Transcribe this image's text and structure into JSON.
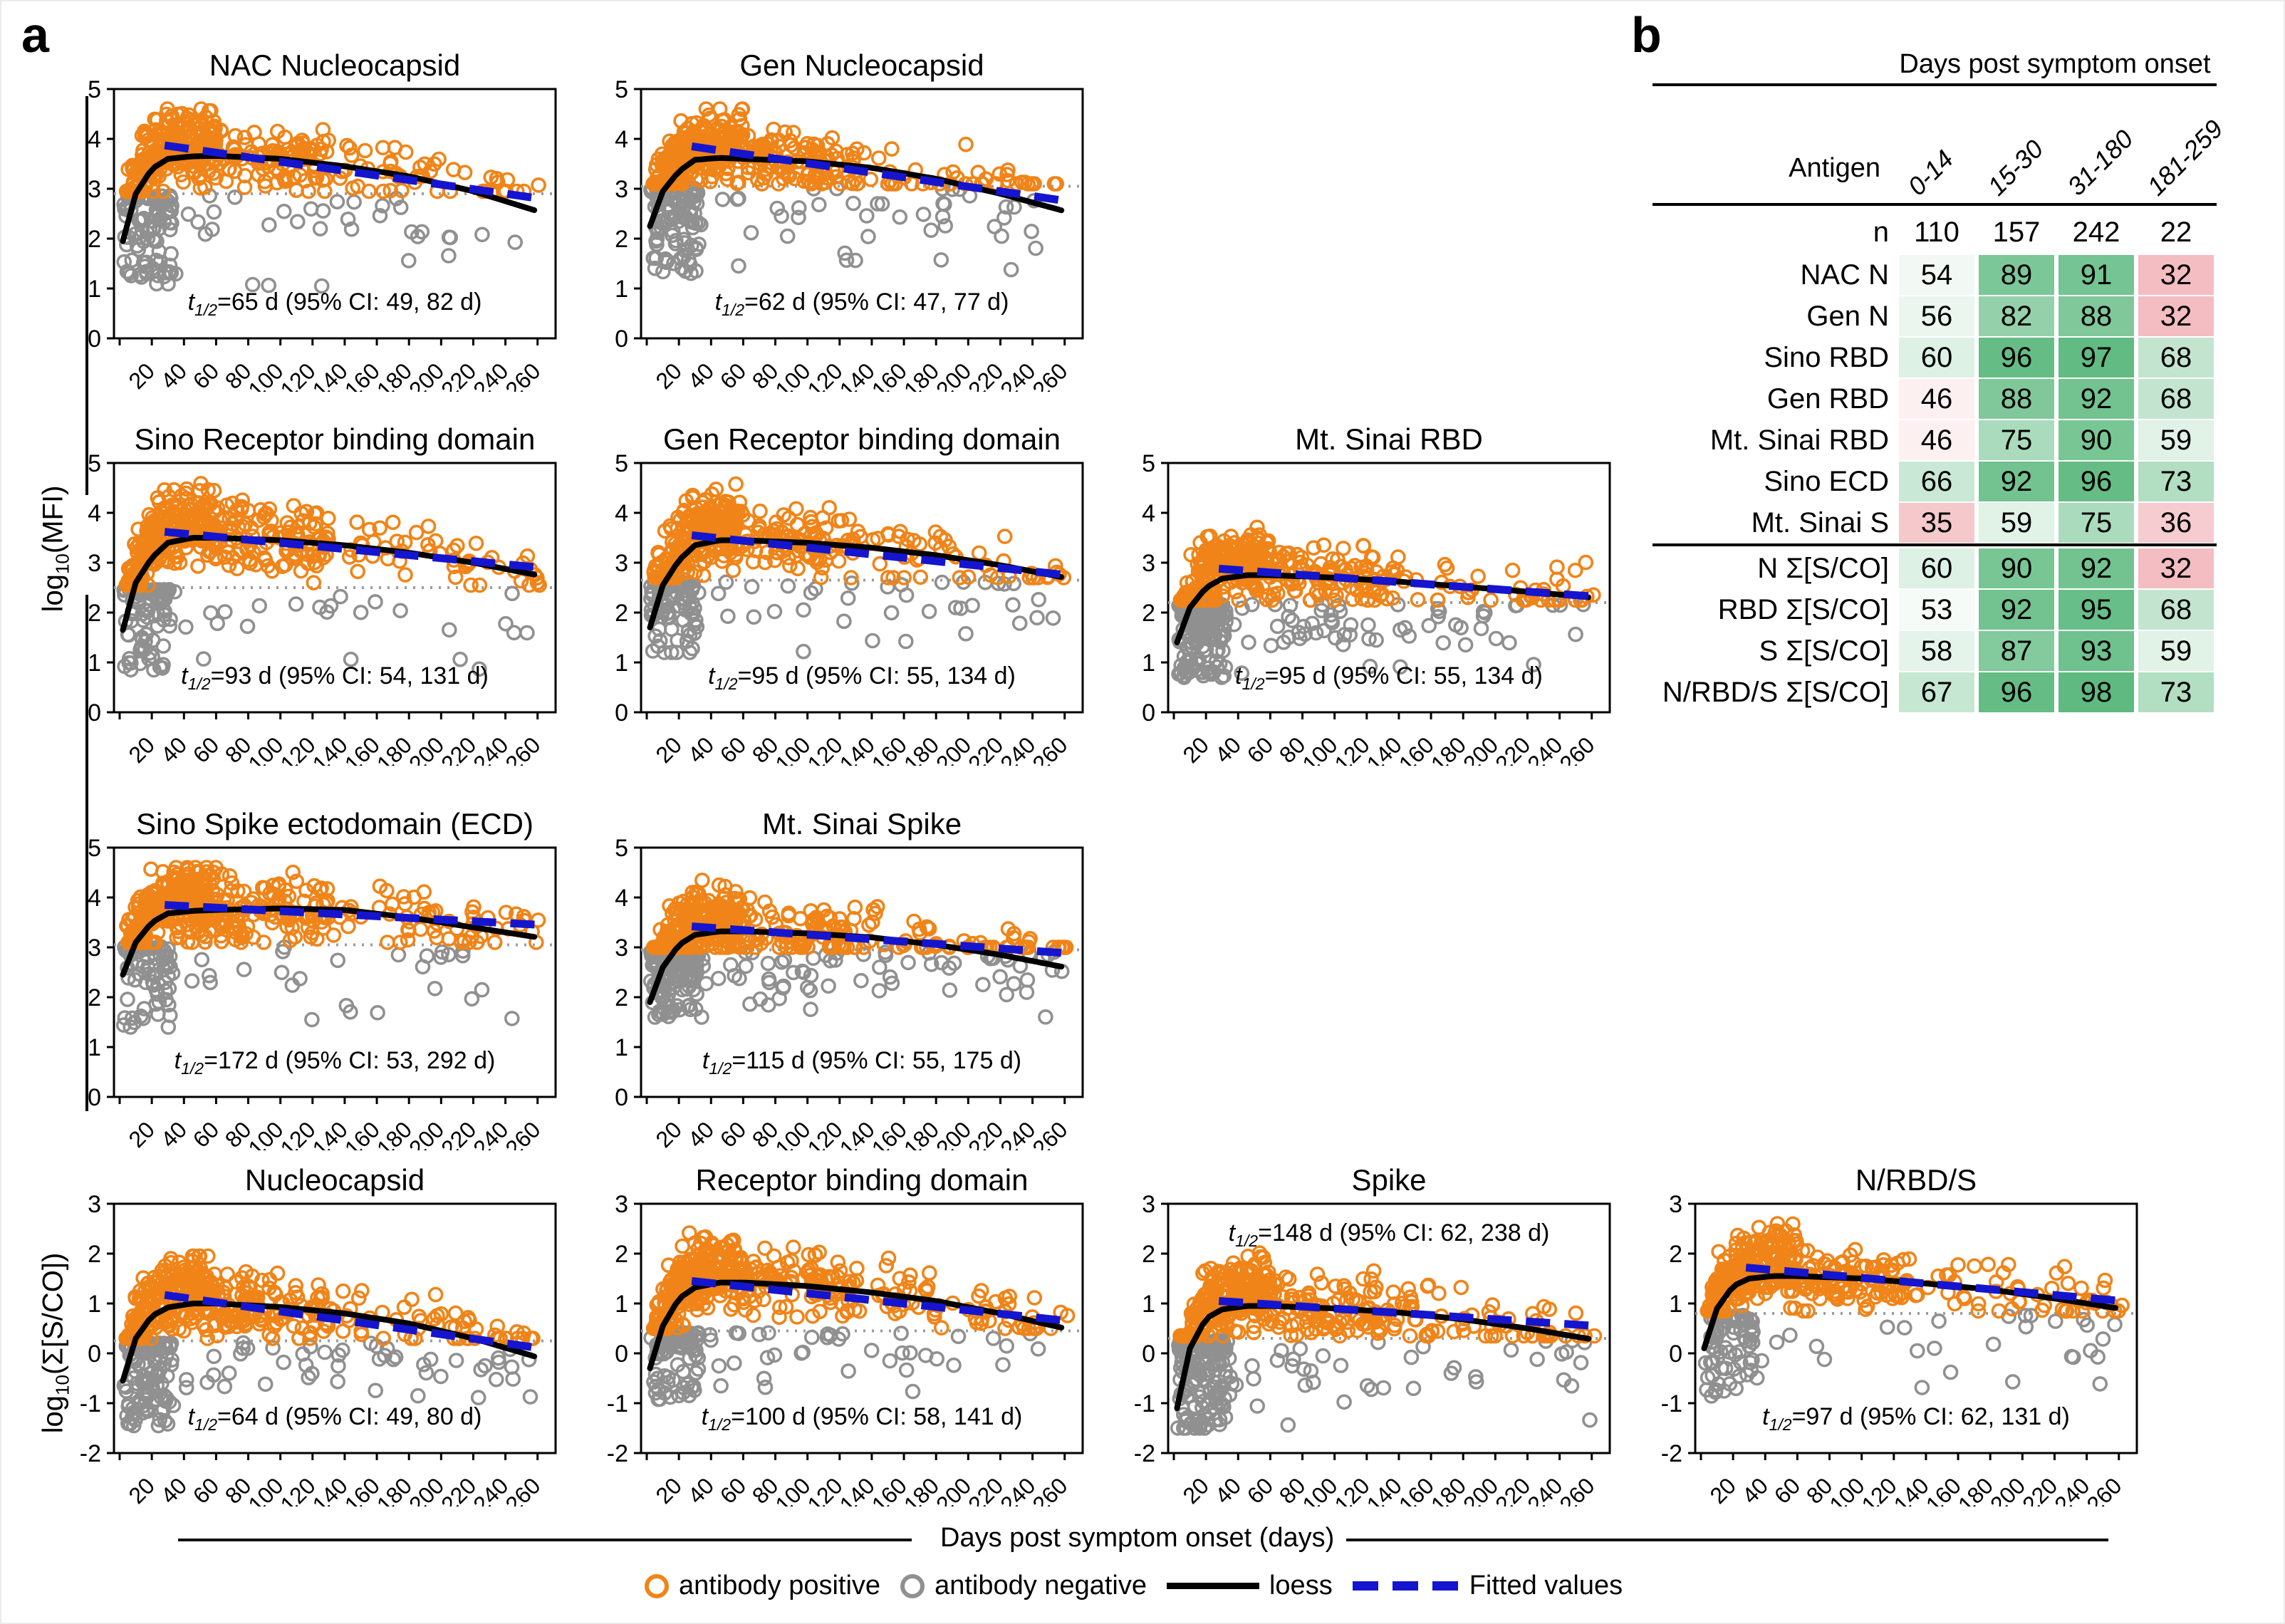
{
  "panel_a": {
    "label": "a",
    "y_axis_mfi": {
      "pre": "log",
      "sub": "10",
      "post": "(MFI)"
    },
    "y_axis_sco": {
      "pre": "log",
      "sub": "10",
      "post": "(Σ[S/CO])"
    },
    "x_axis_label": "Days post symptom onset (days)",
    "annotation_t": "t",
    "annotation_t_sub": "1/2",
    "x_ticks": [
      20,
      40,
      60,
      80,
      100,
      120,
      140,
      160,
      180,
      200,
      220,
      240,
      260
    ],
    "x_max": 265,
    "colors": {
      "positive": "#F08418",
      "negative": "#909090",
      "loess": "#000000",
      "fitted": "#1515D0",
      "threshold": "#9C9C9C"
    },
    "legend": {
      "items": [
        {
          "icon": "orange-circle",
          "label": "antibody positive"
        },
        {
          "icon": "gray-circle",
          "label": "antibody negative"
        },
        {
          "icon": "black-line",
          "label": "loess"
        },
        {
          "icon": "blue-dashed-line",
          "label": "Fitted values"
        }
      ]
    }
  },
  "chart_data": [
    {
      "id": "nac-nucleocapsid",
      "type": "scatter",
      "title": "NAC Nucleocapsid",
      "row": 0,
      "col": 0,
      "ylim": [
        0,
        5
      ],
      "yticks": [
        0,
        1,
        2,
        3,
        4,
        5
      ],
      "threshold": 2.9,
      "annotation": "=65 d (95% CI: 49, 82 d)",
      "annotation_pos": "bottom",
      "loess": [
        [
          2,
          1.95
        ],
        [
          10,
          2.9
        ],
        [
          20,
          3.4
        ],
        [
          30,
          3.6
        ],
        [
          45,
          3.65
        ],
        [
          60,
          3.66
        ],
        [
          100,
          3.6
        ],
        [
          140,
          3.45
        ],
        [
          180,
          3.25
        ],
        [
          220,
          2.95
        ],
        [
          260,
          2.55
        ]
      ],
      "fit": [
        [
          30,
          3.87
        ],
        [
          260,
          2.8
        ]
      ],
      "n_pos": 400,
      "n_neg": 130,
      "pos_max": 4.6,
      "neg_min": 1.05
    },
    {
      "id": "gen-nucleocapsid",
      "type": "scatter",
      "title": "Gen Nucleocapsid",
      "row": 0,
      "col": 1,
      "ylim": [
        0,
        5
      ],
      "yticks": [
        0,
        1,
        2,
        3,
        4,
        5
      ],
      "threshold": 3.05,
      "annotation": "=62 d (95% CI: 47, 77 d)",
      "annotation_pos": "bottom",
      "loess": [
        [
          2,
          2.25
        ],
        [
          10,
          2.95
        ],
        [
          20,
          3.35
        ],
        [
          30,
          3.58
        ],
        [
          45,
          3.62
        ],
        [
          60,
          3.6
        ],
        [
          100,
          3.55
        ],
        [
          140,
          3.42
        ],
        [
          180,
          3.2
        ],
        [
          220,
          2.9
        ],
        [
          260,
          2.55
        ]
      ],
      "fit": [
        [
          30,
          3.85
        ],
        [
          260,
          2.75
        ]
      ],
      "n_pos": 400,
      "n_neg": 150,
      "pos_max": 4.6,
      "neg_min": 1.3
    },
    {
      "id": "sino-rbd",
      "type": "scatter",
      "title": "Sino Receptor binding domain",
      "row": 1,
      "col": 0,
      "ylim": [
        0,
        5
      ],
      "yticks": [
        0,
        1,
        2,
        3,
        4,
        5
      ],
      "threshold": 2.5,
      "annotation": "=93 d (95% CI: 54, 131 d)",
      "annotation_pos": "bottom",
      "loess": [
        [
          2,
          1.65
        ],
        [
          10,
          2.6
        ],
        [
          20,
          3.1
        ],
        [
          30,
          3.4
        ],
        [
          45,
          3.5
        ],
        [
          60,
          3.5
        ],
        [
          100,
          3.45
        ],
        [
          140,
          3.35
        ],
        [
          180,
          3.2
        ],
        [
          220,
          3.0
        ],
        [
          260,
          2.75
        ]
      ],
      "fit": [
        [
          30,
          3.62
        ],
        [
          260,
          2.9
        ]
      ],
      "n_pos": 420,
      "n_neg": 110,
      "pos_max": 4.6,
      "neg_min": 0.85
    },
    {
      "id": "gen-rbd",
      "type": "scatter",
      "title": "Gen Receptor binding domain",
      "row": 1,
      "col": 1,
      "ylim": [
        0,
        5
      ],
      "yticks": [
        0,
        1,
        2,
        3,
        4,
        5
      ],
      "threshold": 2.65,
      "annotation": "=95 d (95% CI: 55, 134 d)",
      "annotation_pos": "bottom",
      "loess": [
        [
          2,
          1.7
        ],
        [
          10,
          2.55
        ],
        [
          20,
          3.05
        ],
        [
          30,
          3.35
        ],
        [
          45,
          3.45
        ],
        [
          60,
          3.45
        ],
        [
          100,
          3.4
        ],
        [
          140,
          3.3
        ],
        [
          180,
          3.15
        ],
        [
          220,
          2.95
        ],
        [
          260,
          2.7
        ]
      ],
      "fit": [
        [
          30,
          3.55
        ],
        [
          260,
          2.75
        ]
      ],
      "n_pos": 410,
      "n_neg": 120,
      "pos_max": 4.6,
      "neg_min": 1.2
    },
    {
      "id": "mtsinai-rbd",
      "type": "scatter",
      "title": "Mt. Sinai RBD",
      "row": 1,
      "col": 2,
      "ylim": [
        0,
        5
      ],
      "yticks": [
        0,
        1,
        2,
        3,
        4,
        5
      ],
      "threshold": 2.2,
      "annotation": "=95 d (95% CI: 55, 134 d)",
      "annotation_pos": "bottom",
      "loess": [
        [
          2,
          1.4
        ],
        [
          10,
          2.1
        ],
        [
          20,
          2.5
        ],
        [
          30,
          2.68
        ],
        [
          45,
          2.75
        ],
        [
          60,
          2.75
        ],
        [
          100,
          2.7
        ],
        [
          140,
          2.62
        ],
        [
          180,
          2.52
        ],
        [
          220,
          2.42
        ],
        [
          260,
          2.3
        ]
      ],
      "fit": [
        [
          30,
          2.88
        ],
        [
          260,
          2.32
        ]
      ],
      "n_pos": 370,
      "n_neg": 230,
      "pos_max": 4.4,
      "neg_min": 0.7
    },
    {
      "id": "sino-ecd",
      "type": "scatter",
      "title": "Sino Spike ectodomain (ECD)",
      "row": 2,
      "col": 0,
      "ylim": [
        0,
        5
      ],
      "yticks": [
        0,
        1,
        2,
        3,
        4,
        5
      ],
      "threshold": 3.05,
      "annotation": "=172 d (95% CI: 53, 292 d)",
      "annotation_pos": "bottom",
      "loess": [
        [
          2,
          2.45
        ],
        [
          10,
          3.1
        ],
        [
          20,
          3.5
        ],
        [
          30,
          3.68
        ],
        [
          45,
          3.73
        ],
        [
          60,
          3.75
        ],
        [
          100,
          3.78
        ],
        [
          140,
          3.75
        ],
        [
          180,
          3.6
        ],
        [
          220,
          3.4
        ],
        [
          260,
          3.2
        ]
      ],
      "fit": [
        [
          30,
          3.85
        ],
        [
          260,
          3.45
        ]
      ],
      "n_pos": 430,
      "n_neg": 100,
      "pos_max": 4.6,
      "neg_min": 1.4
    },
    {
      "id": "mtsinai-spike",
      "type": "scatter",
      "title": "Mt. Sinai Spike",
      "row": 2,
      "col": 1,
      "ylim": [
        0,
        5
      ],
      "yticks": [
        0,
        1,
        2,
        3,
        4,
        5
      ],
      "threshold": 2.95,
      "annotation": "=115 d (95% CI: 55, 175 d)",
      "annotation_pos": "bottom",
      "loess": [
        [
          2,
          1.9
        ],
        [
          10,
          2.6
        ],
        [
          20,
          3.05
        ],
        [
          30,
          3.25
        ],
        [
          45,
          3.32
        ],
        [
          60,
          3.32
        ],
        [
          100,
          3.28
        ],
        [
          140,
          3.2
        ],
        [
          180,
          3.05
        ],
        [
          220,
          2.85
        ],
        [
          260,
          2.6
        ]
      ],
      "fit": [
        [
          30,
          3.42
        ],
        [
          260,
          2.88
        ]
      ],
      "n_pos": 370,
      "n_neg": 230,
      "pos_max": 4.55,
      "neg_min": 1.6
    },
    {
      "id": "sum-nucleocapsid",
      "type": "scatter",
      "title": "Nucleocapsid",
      "row": 3,
      "col": 0,
      "ylim": [
        -2,
        3
      ],
      "yticks": [
        -2,
        -1,
        0,
        1,
        2,
        3
      ],
      "threshold": 0.25,
      "annotation": "=64 d (95% CI: 49, 80 d)",
      "annotation_pos": "bottom",
      "loess": [
        [
          2,
          -0.55
        ],
        [
          10,
          0.3
        ],
        [
          20,
          0.75
        ],
        [
          30,
          0.92
        ],
        [
          45,
          1.0
        ],
        [
          60,
          1.0
        ],
        [
          100,
          0.93
        ],
        [
          140,
          0.8
        ],
        [
          180,
          0.6
        ],
        [
          220,
          0.3
        ],
        [
          260,
          -0.08
        ]
      ],
      "fit": [
        [
          30,
          1.17
        ],
        [
          260,
          0.1
        ]
      ],
      "n_pos": 400,
      "n_neg": 160,
      "pos_max": 1.95,
      "neg_min": -1.45
    },
    {
      "id": "sum-rbd",
      "type": "scatter",
      "title": "Receptor binding domain",
      "row": 3,
      "col": 1,
      "ylim": [
        -2,
        3
      ],
      "yticks": [
        -2,
        -1,
        0,
        1,
        2,
        3
      ],
      "threshold": 0.45,
      "annotation": "=100 d (95% CI: 58, 141 d)",
      "annotation_pos": "bottom",
      "loess": [
        [
          2,
          -0.3
        ],
        [
          10,
          0.55
        ],
        [
          20,
          1.1
        ],
        [
          30,
          1.32
        ],
        [
          45,
          1.42
        ],
        [
          60,
          1.42
        ],
        [
          100,
          1.35
        ],
        [
          140,
          1.22
        ],
        [
          180,
          1.05
        ],
        [
          220,
          0.8
        ],
        [
          260,
          0.5
        ]
      ],
      "fit": [
        [
          30,
          1.45
        ],
        [
          260,
          0.65
        ]
      ],
      "n_pos": 420,
      "n_neg": 120,
      "pos_max": 2.55,
      "neg_min": -1.0
    },
    {
      "id": "sum-spike",
      "type": "scatter",
      "title": "Spike",
      "row": 3,
      "col": 2,
      "ylim": [
        -2,
        3
      ],
      "yticks": [
        -2,
        -1,
        0,
        1,
        2,
        3
      ],
      "threshold": 0.3,
      "annotation": "=148 d (95% CI: 62, 238 d)",
      "annotation_pos": "top",
      "loess": [
        [
          2,
          -1.1
        ],
        [
          10,
          0.1
        ],
        [
          20,
          0.7
        ],
        [
          30,
          0.88
        ],
        [
          45,
          0.95
        ],
        [
          60,
          0.95
        ],
        [
          100,
          0.9
        ],
        [
          140,
          0.82
        ],
        [
          180,
          0.68
        ],
        [
          220,
          0.5
        ],
        [
          260,
          0.28
        ]
      ],
      "fit": [
        [
          30,
          1.05
        ],
        [
          260,
          0.55
        ]
      ],
      "n_pos": 390,
      "n_neg": 210,
      "pos_max": 2.1,
      "neg_min": -1.5
    },
    {
      "id": "sum-nrbds",
      "type": "scatter",
      "title": "N/RBD/S",
      "row": 3,
      "col": 3,
      "ylim": [
        -2,
        3
      ],
      "yticks": [
        -2,
        -1,
        0,
        1,
        2,
        3
      ],
      "threshold": 0.8,
      "annotation": "=97 d (95% CI: 62, 131 d)",
      "annotation_pos": "bottom",
      "loess": [
        [
          2,
          0.1
        ],
        [
          10,
          0.9
        ],
        [
          20,
          1.35
        ],
        [
          30,
          1.5
        ],
        [
          45,
          1.55
        ],
        [
          60,
          1.55
        ],
        [
          100,
          1.5
        ],
        [
          140,
          1.4
        ],
        [
          180,
          1.28
        ],
        [
          220,
          1.1
        ],
        [
          260,
          0.9
        ]
      ],
      "fit": [
        [
          30,
          1.72
        ],
        [
          260,
          1.05
        ]
      ],
      "n_pos": 420,
      "n_neg": 100,
      "pos_max": 2.6,
      "neg_min": -0.9
    }
  ],
  "panel_b": {
    "label": "b",
    "header": "Days post symptom onset",
    "antigen_label": "Antigen",
    "columns": [
      "0-14",
      "15-30",
      "31-180",
      "181-259"
    ],
    "n_label": "n",
    "n_values": [
      110,
      157,
      242,
      22
    ],
    "rows": [
      {
        "label": "NAC N",
        "values": [
          54,
          89,
          91,
          32
        ]
      },
      {
        "label": "Gen N",
        "values": [
          56,
          82,
          88,
          32
        ]
      },
      {
        "label": "Sino RBD",
        "values": [
          60,
          96,
          97,
          68
        ]
      },
      {
        "label": "Gen RBD",
        "values": [
          46,
          88,
          92,
          68
        ]
      },
      {
        "label": "Mt. Sinai RBD",
        "values": [
          46,
          75,
          90,
          59
        ]
      },
      {
        "label": "Sino ECD",
        "values": [
          66,
          92,
          96,
          73
        ]
      },
      {
        "label": "Mt. Sinai S",
        "values": [
          35,
          59,
          75,
          36
        ]
      },
      {
        "label": "N Σ[S/CO]",
        "values": [
          60,
          90,
          92,
          32
        ]
      },
      {
        "label": "RBD Σ[S/CO]",
        "values": [
          53,
          92,
          95,
          68
        ]
      },
      {
        "label": "S Σ[S/CO]",
        "values": [
          58,
          87,
          93,
          59
        ]
      },
      {
        "label": "N/RBD/S Σ[S/CO]",
        "values": [
          67,
          96,
          98,
          73
        ]
      }
    ],
    "group_break_after_row": 6,
    "color_scale": {
      "low": "#F3BDC2",
      "mid": "#FFFFFF",
      "high": "#5EBA80"
    }
  }
}
